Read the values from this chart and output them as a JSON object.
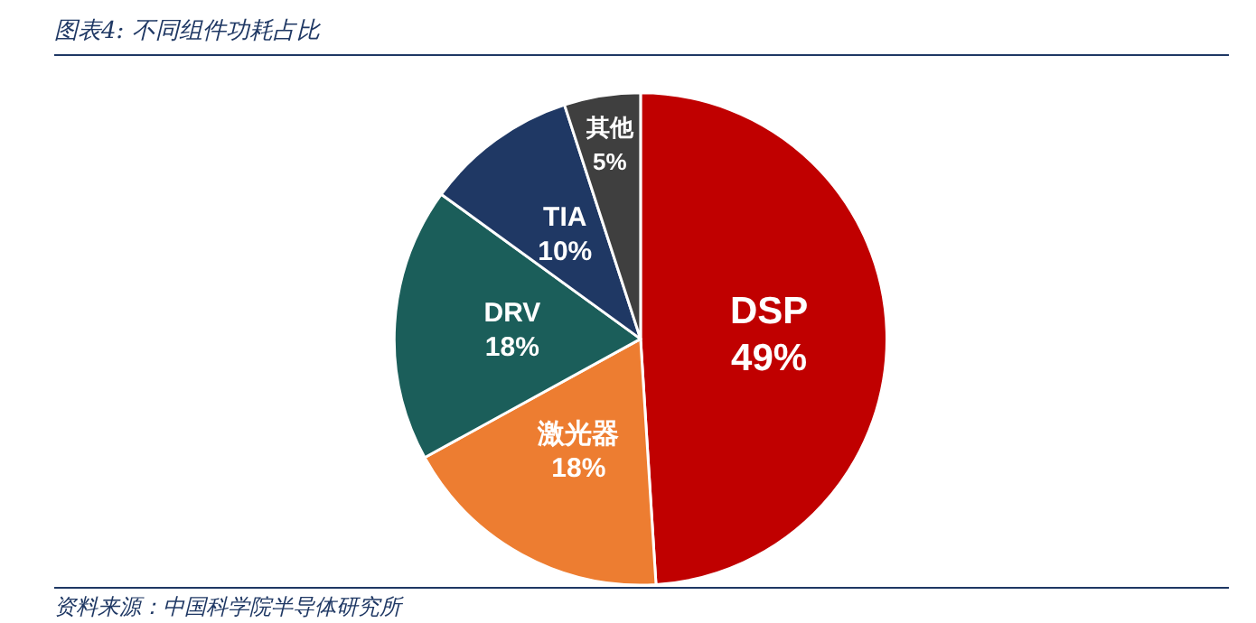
{
  "chart_data": {
    "type": "pie",
    "title": "图表4:  不同组件功耗占比",
    "categories": [
      "DSP",
      "激光器",
      "DRV",
      "TIA",
      "其他"
    ],
    "values": [
      49,
      18,
      18,
      10,
      5
    ],
    "value_labels": [
      "49%",
      "18%",
      "18%",
      "10%",
      "5%"
    ],
    "colors": [
      "#c00000",
      "#ed7d31",
      "#1b5e5a",
      "#1f3864",
      "#3f3f3f"
    ],
    "legend": false,
    "annotations": [
      "资料来源：中国科学院半导体研究所"
    ]
  }
}
